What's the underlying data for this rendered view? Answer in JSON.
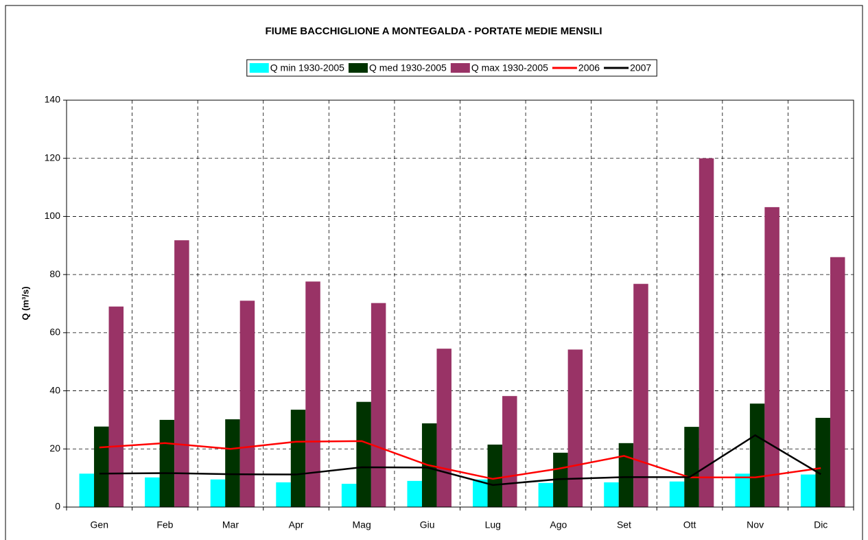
{
  "chart_data": {
    "type": "bar",
    "title": "FIUME BACCHIGLIONE A MONTEGALDA - PORTATE MEDIE MENSILI",
    "y_label": "Q (m³/s)",
    "categories": [
      "Gen",
      "Feb",
      "Mar",
      "Apr",
      "Mag",
      "Giu",
      "Lug",
      "Ago",
      "Set",
      "Ott",
      "Nov",
      "Dic"
    ],
    "series": [
      {
        "name": "Q min 1930-2005",
        "type": "bar",
        "color": "#00ffff",
        "values": [
          11.5,
          10.2,
          9.5,
          8.5,
          8,
          9,
          9.5,
          8.3,
          8.5,
          8.8,
          11.5,
          11.2
        ]
      },
      {
        "name": "Q med 1930-2005",
        "type": "bar",
        "color": "#003300",
        "values": [
          27.7,
          30,
          30.2,
          33.5,
          36.2,
          28.8,
          21.5,
          18.7,
          22,
          27.6,
          35.6,
          30.7
        ]
      },
      {
        "name": "Q max 1930-2005",
        "type": "bar",
        "color": "#993366",
        "values": [
          69,
          91.8,
          71,
          77.6,
          70.2,
          54.5,
          38.2,
          54.2,
          76.8,
          120,
          103.2,
          86
        ]
      },
      {
        "name": "2006",
        "type": "line",
        "color": "#ff0000",
        "values": [
          20.5,
          22,
          20,
          22.5,
          22.7,
          14.5,
          9.7,
          13.2,
          17.6,
          10.2,
          10.2,
          13.4
        ]
      },
      {
        "name": "2007",
        "type": "line",
        "color": "#000000",
        "values": [
          11.5,
          11.7,
          11.3,
          11.2,
          13.7,
          13.6,
          7.6,
          9.6,
          10.3,
          10.3,
          24.7,
          11.3
        ]
      }
    ],
    "ylim": [
      0,
      140
    ],
    "yticks": [
      0,
      20,
      40,
      60,
      80,
      100,
      120,
      140
    ],
    "grid": true,
    "legend": "top"
  }
}
